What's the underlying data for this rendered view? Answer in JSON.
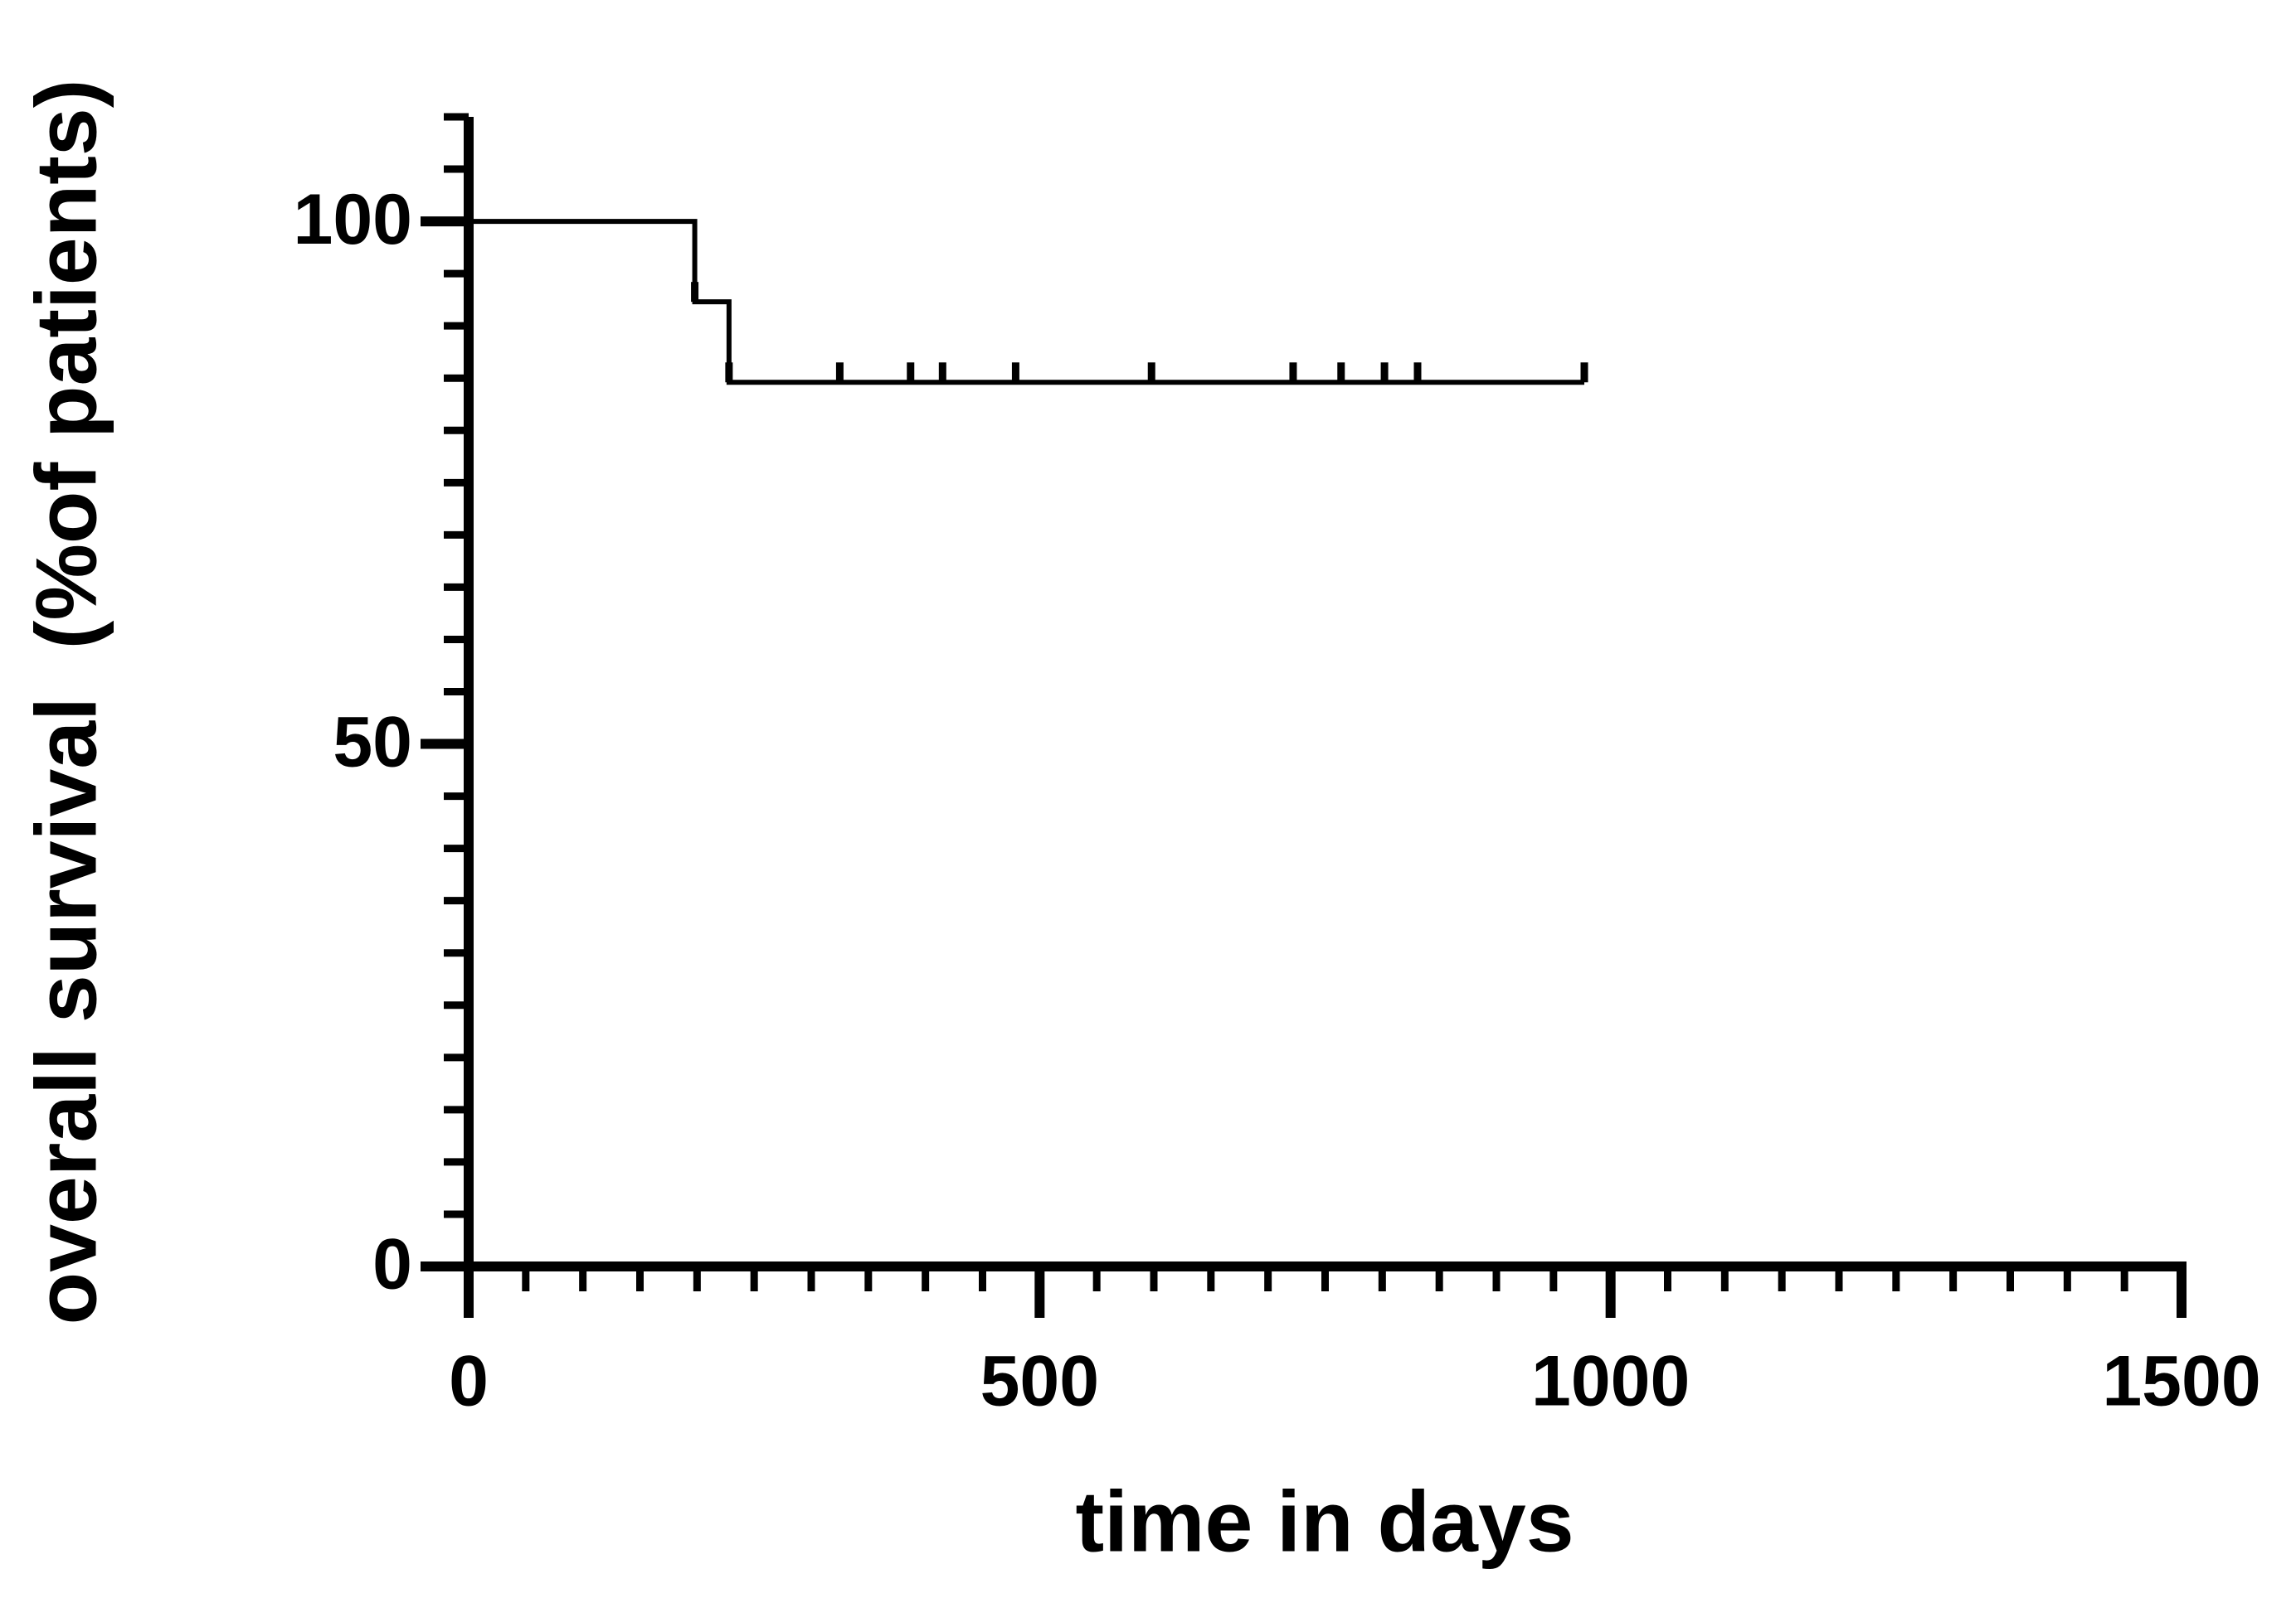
{
  "chart_data": {
    "type": "step",
    "x_label": "time in days",
    "y_label": "overall survival  (%of patients)",
    "x": [
      0,
      198,
      228,
      977
    ],
    "values": [
      100,
      92.3,
      84.6,
      84.6
    ],
    "censored": {
      "x": [
        198,
        228,
        325,
        387,
        415,
        479,
        598,
        722,
        764,
        802,
        831,
        977
      ],
      "values": [
        92.3,
        84.6,
        84.6,
        84.6,
        84.6,
        84.6,
        84.6,
        84.6,
        84.6,
        84.6,
        84.6,
        84.6
      ]
    },
    "color": "#000000",
    "xlim": [
      0,
      1500
    ],
    "xticks": [
      0,
      500,
      1000,
      1500
    ],
    "minor_xtick_step": 50,
    "ylim": [
      0,
      110
    ],
    "yticks": [
      0,
      50,
      100
    ],
    "minor_ytick_step": 5
  }
}
